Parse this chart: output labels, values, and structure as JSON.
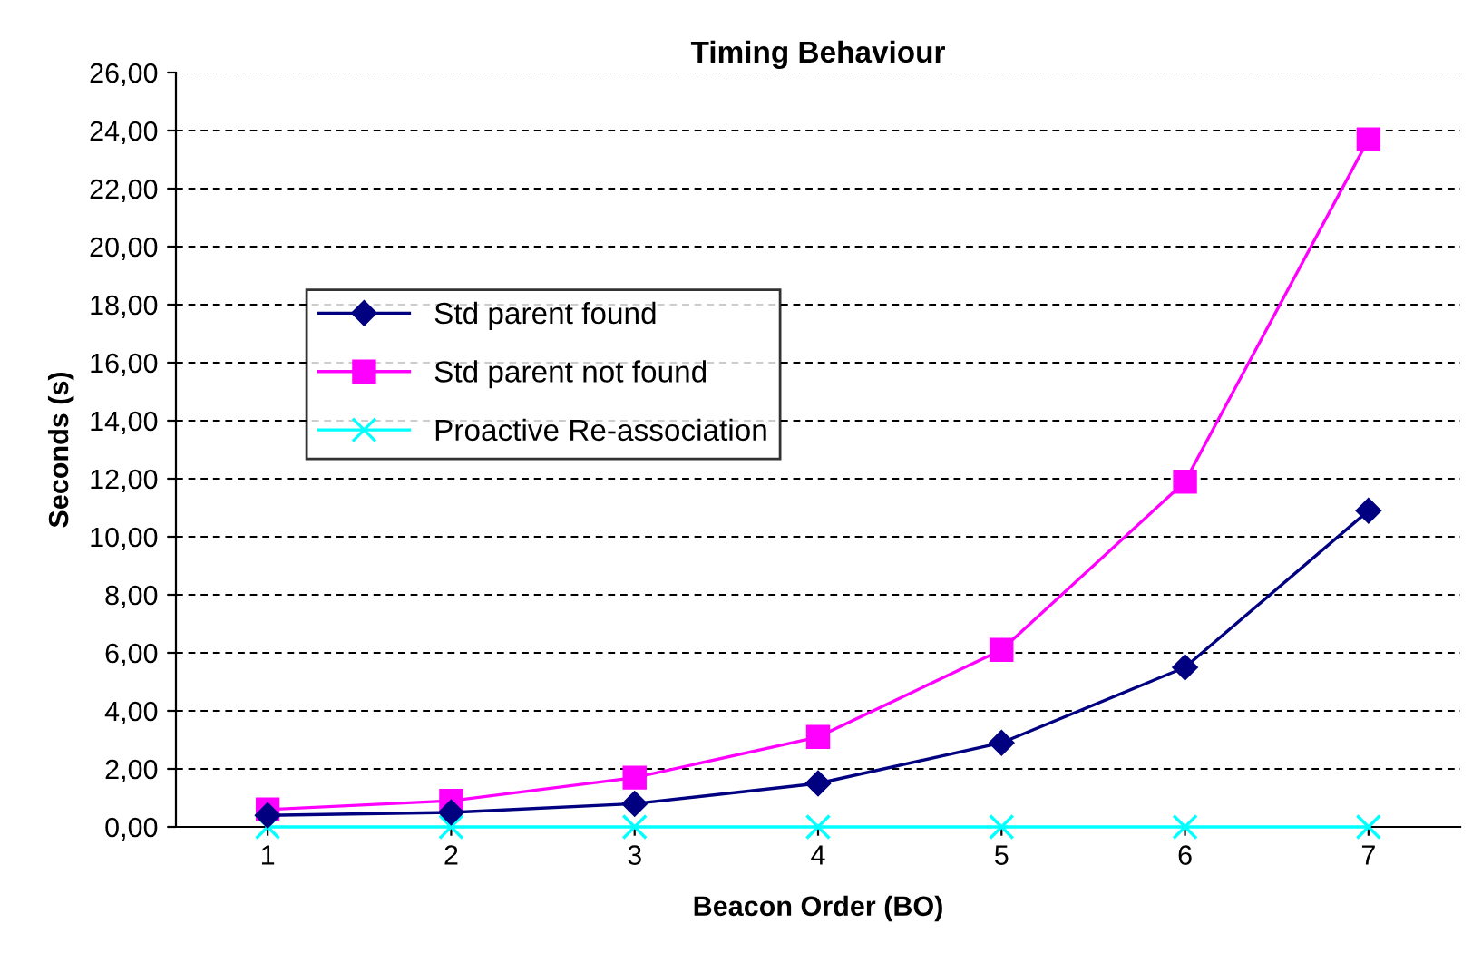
{
  "chart_data": {
    "type": "line",
    "title": "Timing Behaviour",
    "xlabel": "Beacon Order (BO)",
    "ylabel": "Seconds (s)",
    "categories": [
      "1",
      "2",
      "3",
      "4",
      "5",
      "6",
      "7"
    ],
    "series": [
      {
        "name": "Std parent found",
        "color": "#000080",
        "marker": "diamond",
        "values": [
          0.4,
          0.5,
          0.8,
          1.5,
          2.9,
          5.5,
          10.9
        ]
      },
      {
        "name": "Std parent not found",
        "color": "#ff00ff",
        "marker": "square",
        "values": [
          0.6,
          0.9,
          1.7,
          3.1,
          6.1,
          11.9,
          23.7
        ]
      },
      {
        "name": "Proactive Re-association",
        "color": "#00ffff",
        "marker": "cross",
        "values": [
          0,
          0,
          0,
          0,
          0,
          0,
          0
        ]
      }
    ],
    "ylim": [
      0,
      26
    ],
    "yticks": [
      {
        "value": 0,
        "label": "0,00"
      },
      {
        "value": 2,
        "label": "2,00"
      },
      {
        "value": 4,
        "label": "4,00"
      },
      {
        "value": 6,
        "label": "6,00"
      },
      {
        "value": 8,
        "label": "8,00"
      },
      {
        "value": 10,
        "label": "10,00"
      },
      {
        "value": 12,
        "label": "12,00"
      },
      {
        "value": 14,
        "label": "14,00"
      },
      {
        "value": 16,
        "label": "16,00"
      },
      {
        "value": 18,
        "label": "18,00"
      },
      {
        "value": 20,
        "label": "20,00"
      },
      {
        "value": 22,
        "label": "22,00"
      },
      {
        "value": 24,
        "label": "24,00"
      },
      {
        "value": 26,
        "label": "26,00"
      }
    ],
    "grid": "y",
    "legend": "center left",
    "line_style": "solid"
  }
}
